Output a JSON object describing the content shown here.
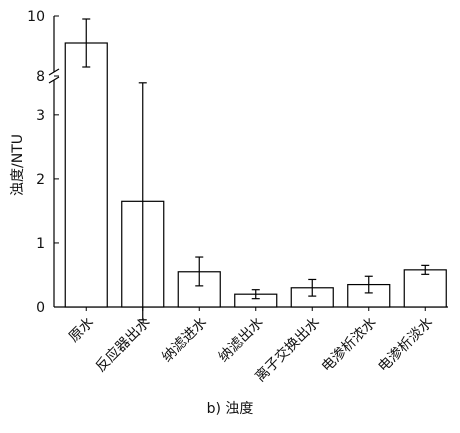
{
  "chart_data": {
    "type": "bar",
    "ylabel": "浊度/NTU",
    "caption": "b) 浊度",
    "axis_break": {
      "lower_range": [
        0,
        3.7
      ],
      "upper_range": [
        7.8,
        10
      ]
    },
    "yticks": [
      0,
      1,
      2,
      3,
      8,
      10
    ],
    "ytick_labels": [
      "0",
      "1",
      "2",
      "3",
      "8",
      "10"
    ],
    "categories": [
      "原水",
      "反应器出水",
      "纳滤进水",
      "纳滤出水",
      "离子交换出水",
      "电渗析浓水",
      "电渗析淡水"
    ],
    "values": [
      9.1,
      1.65,
      0.55,
      0.2,
      0.3,
      0.35,
      0.58
    ],
    "error_low": [
      8.3,
      -0.2,
      0.33,
      0.13,
      0.17,
      0.22,
      0.51
    ],
    "error_high": [
      9.9,
      3.5,
      0.78,
      0.27,
      0.43,
      0.48,
      0.65
    ]
  }
}
